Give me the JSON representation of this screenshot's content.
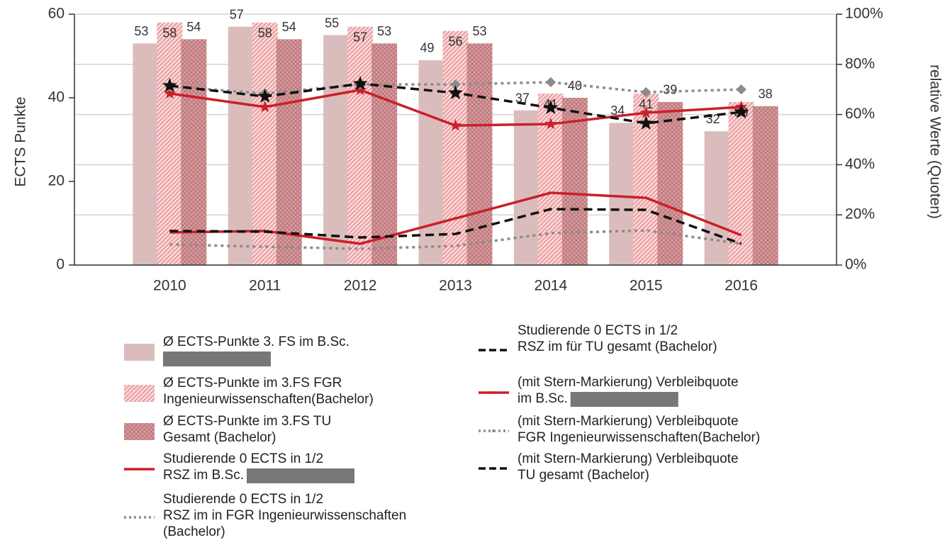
{
  "chart_data": {
    "type": "bar",
    "y_label": "ECTS Punkte",
    "y2_label": "relative Werte (Quoten)",
    "categories": [
      "2010",
      "2011",
      "2012",
      "2013",
      "2014",
      "2015",
      "2016"
    ],
    "ylim": [
      0,
      60
    ],
    "yticks": [
      0,
      20,
      40,
      60
    ],
    "y2lim": [
      0,
      100
    ],
    "y2ticks": [
      {
        "value": 0,
        "label": "0%"
      },
      {
        "value": 20,
        "label": "20%"
      },
      {
        "value": 40,
        "label": "40%"
      },
      {
        "value": 60,
        "label": "60%"
      },
      {
        "value": 80,
        "label": "80%"
      },
      {
        "value": 100,
        "label": "100%"
      }
    ],
    "grid": true,
    "series": [
      {
        "name": "Ø ECTS-Punkte 3. FS im B.Sc.",
        "type": "bar",
        "pattern": "solid",
        "color": "#dbbcbc",
        "values": [
          53,
          57,
          55,
          49,
          37,
          34,
          32
        ]
      },
      {
        "name": "Ø ECTS-Punkte im 3.FS FGR Ingenieurwissenschaften(Bachelor)",
        "type": "bar",
        "pattern": "diagonal",
        "color": "#eb9a9d",
        "values": [
          58,
          58,
          57,
          56,
          41,
          41,
          39
        ]
      },
      {
        "name": "Ø ECTS-Punkte im 3.FS TU Gesamt (Bachelor)",
        "type": "bar",
        "pattern": "crosshatch",
        "color": "#c0797d",
        "values": [
          54,
          54,
          53,
          53,
          40,
          39,
          38
        ]
      },
      {
        "name": "Studierende 0 ECTS in 1/2 RSZ im B.Sc.",
        "type": "line",
        "axis": "y2",
        "style": "solid",
        "color": "#c9202a",
        "values": [
          13,
          13.6,
          8.5,
          18.6,
          28.8,
          26.8,
          11.9
        ]
      },
      {
        "name": "Studierende 0 ECTS in 1/2 RSZ im  in FGR Ingenieurwissenschaften (Bachelor)",
        "type": "line",
        "axis": "y2",
        "style": "dotted",
        "color": "#8c8c8c",
        "values": [
          8.2,
          7.3,
          6.5,
          7.6,
          12.7,
          13.8,
          8.5
        ]
      },
      {
        "name": "Studierende 0 ECTS in 1/2 RSZ im  für TU gesamt (Bachelor)",
        "type": "line",
        "axis": "y2",
        "style": "dashed",
        "color": "#111111",
        "values": [
          13.6,
          13.3,
          11,
          12.4,
          22.3,
          22,
          8.5
        ]
      },
      {
        "name": "(mit Stern-Markierung) Verbleibquote im B.Sc.",
        "type": "line",
        "axis": "y2",
        "style": "solid",
        "marker": "star",
        "color": "#c9202a",
        "values": [
          68.4,
          63,
          69.8,
          55.6,
          56.2,
          60.7,
          63
        ]
      },
      {
        "name": "(mit Stern-Markierung) Verbleibquote FGR Ingenieurwissenschaften(Bachelor)",
        "type": "line",
        "axis": "y2",
        "style": "dotted",
        "marker": "diamond",
        "color": "#8c8c8c",
        "values": [
          71.2,
          68.4,
          72,
          72,
          72.9,
          68.9,
          70
        ]
      },
      {
        "name": "(mit Stern-Markierung) Verbleibquote TU gesamt (Bachelor)",
        "type": "line",
        "axis": "y2",
        "style": "dashed",
        "marker": "star",
        "color": "#111111",
        "values": [
          71.5,
          67.2,
          72.3,
          68.6,
          62.7,
          56.5,
          61
        ]
      }
    ]
  }
}
